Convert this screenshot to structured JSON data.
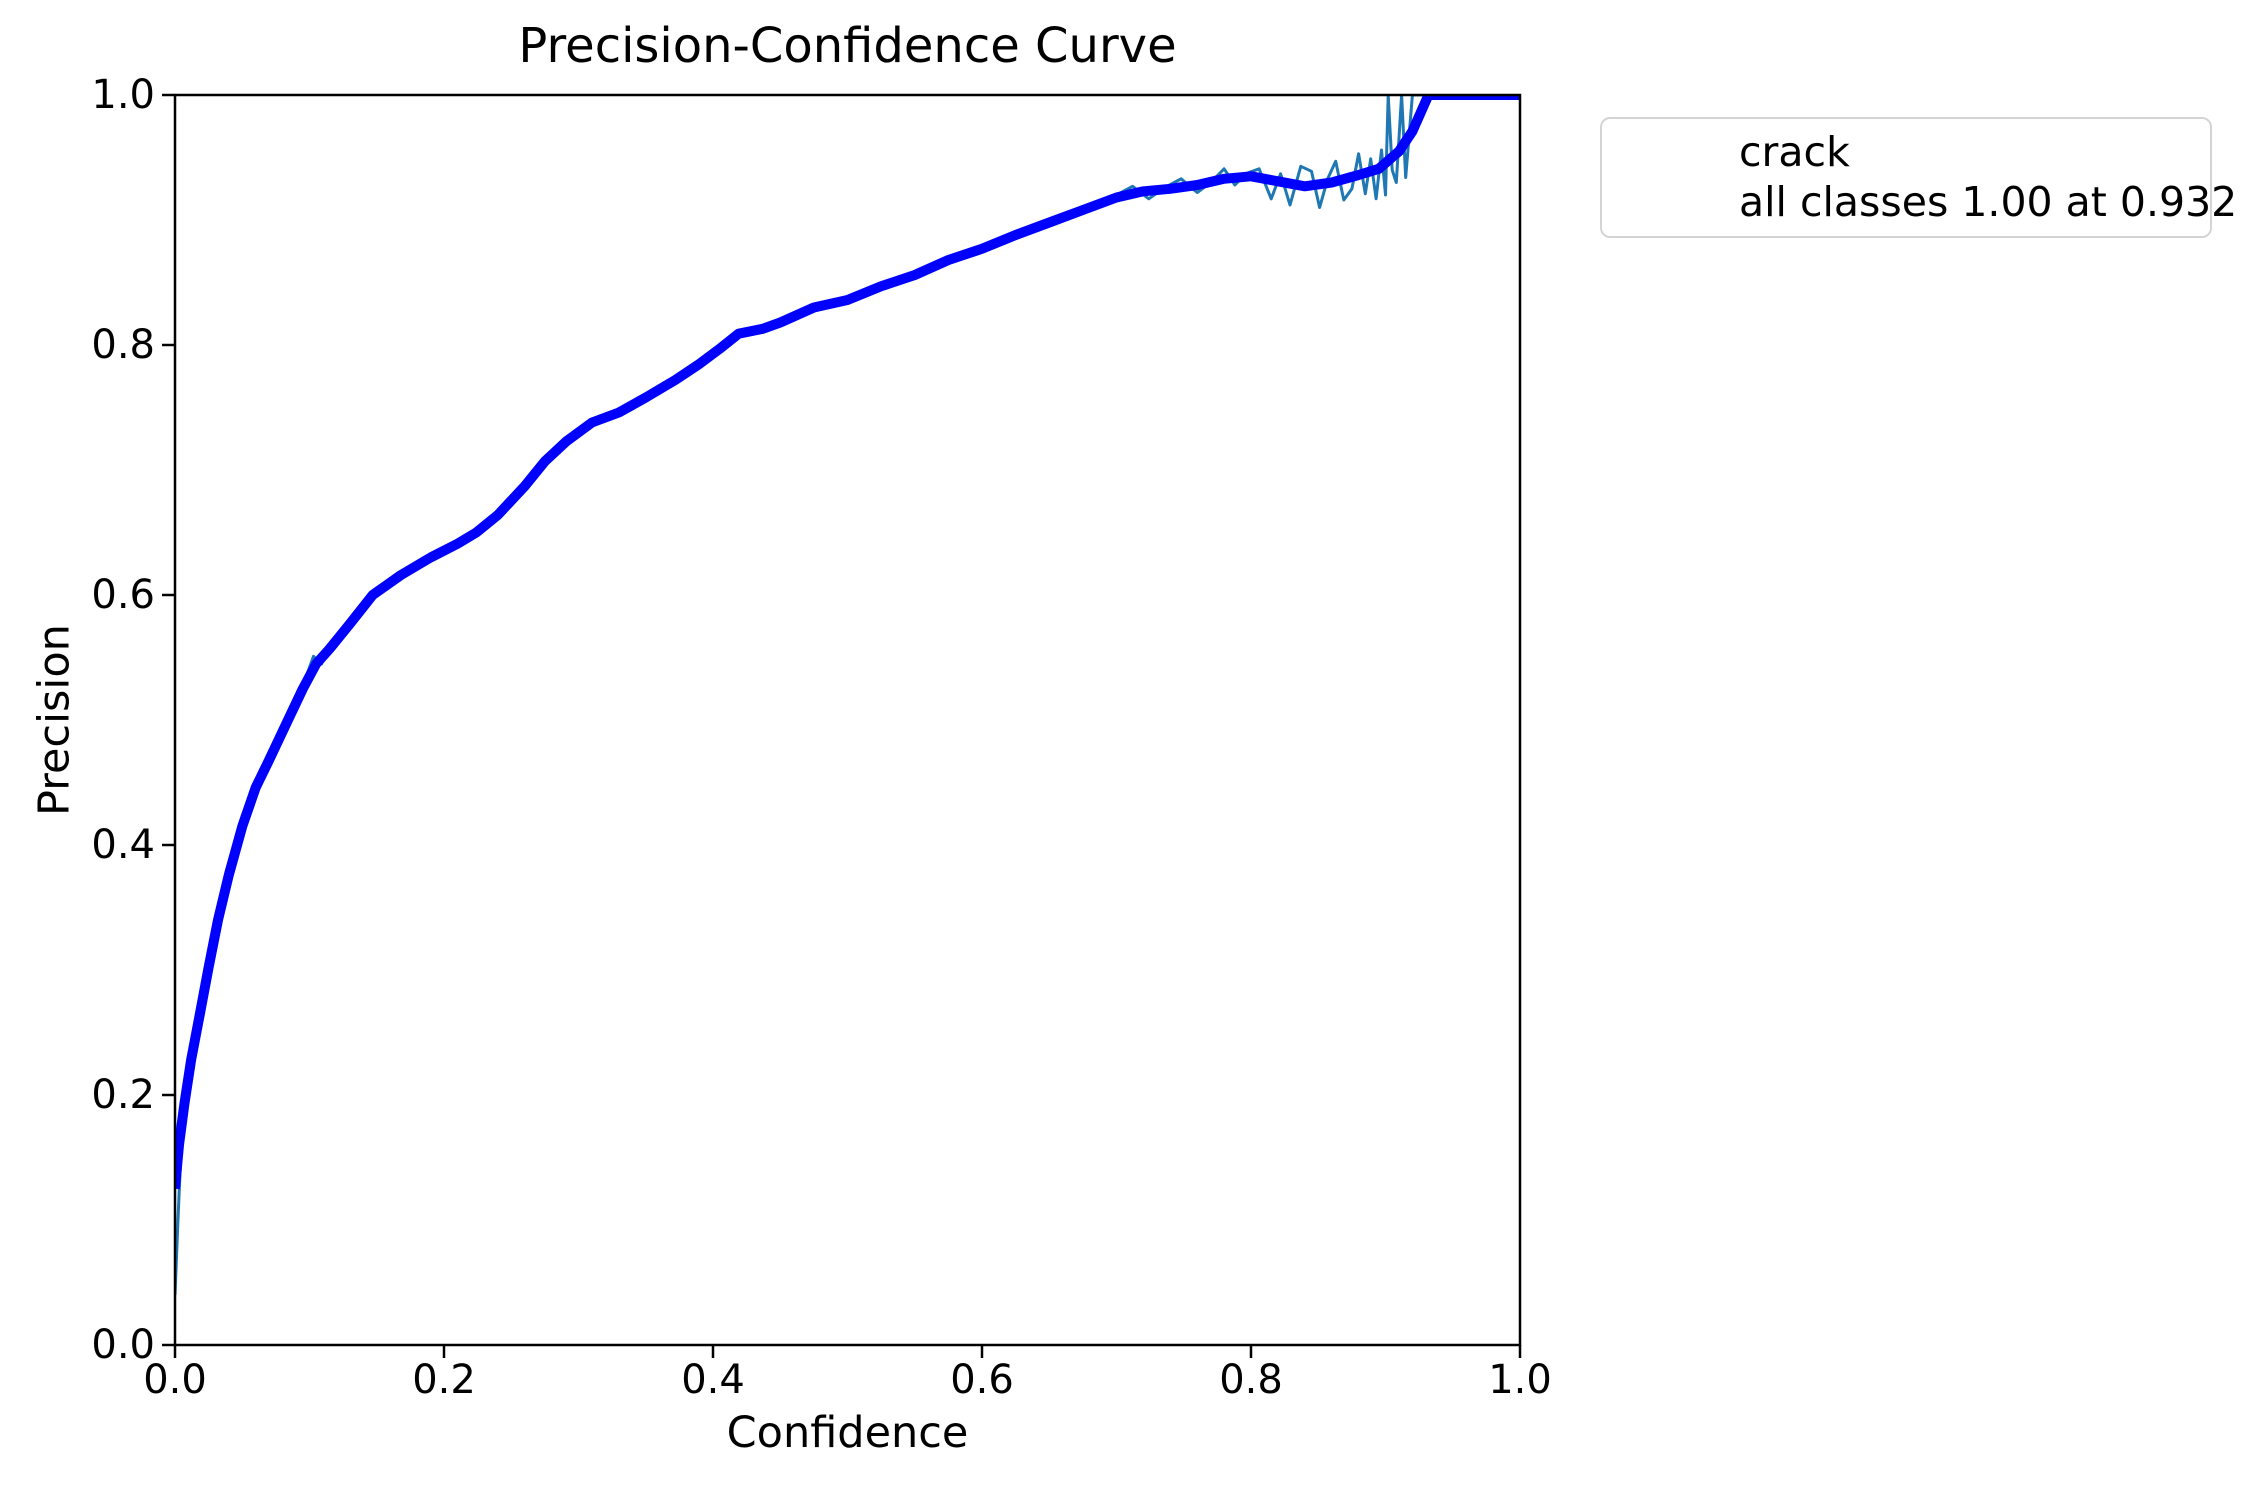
{
  "chart_data": {
    "type": "line",
    "title": "Precision-Confidence Curve",
    "xlabel": "Confidence",
    "ylabel": "Precision",
    "xlim": [
      0.0,
      1.0
    ],
    "ylim": [
      0.0,
      1.0
    ],
    "grid": false,
    "background_color": "#ffffff",
    "spine_color": "#000000",
    "legend_position": "outside-upper-right",
    "x_ticks": [
      0.0,
      0.2,
      0.4,
      0.6,
      0.8,
      1.0
    ],
    "x_tick_labels": [
      "0.0",
      "0.2",
      "0.4",
      "0.6",
      "0.8",
      "1.0"
    ],
    "y_ticks": [
      0.0,
      0.2,
      0.4,
      0.6,
      0.8,
      1.0
    ],
    "y_tick_labels": [
      "0.0",
      "0.2",
      "0.4",
      "0.6",
      "0.8",
      "1.0"
    ],
    "series": [
      {
        "name": "crack",
        "color": "#1f77b4",
        "line_width": 3,
        "points": [
          [
            0.0,
            0.04
          ],
          [
            0.002,
            0.095
          ],
          [
            0.004,
            0.145
          ],
          [
            0.007,
            0.195
          ],
          [
            0.012,
            0.23
          ],
          [
            0.018,
            0.264
          ],
          [
            0.025,
            0.304
          ],
          [
            0.032,
            0.342
          ],
          [
            0.04,
            0.378
          ],
          [
            0.05,
            0.417
          ],
          [
            0.06,
            0.448
          ],
          [
            0.07,
            0.47
          ],
          [
            0.084,
            0.502
          ],
          [
            0.095,
            0.527
          ],
          [
            0.103,
            0.551
          ],
          [
            0.109,
            0.545
          ],
          [
            0.115,
            0.559
          ],
          [
            0.13,
            0.579
          ],
          [
            0.147,
            0.602
          ],
          [
            0.168,
            0.618
          ],
          [
            0.19,
            0.632
          ],
          [
            0.21,
            0.643
          ],
          [
            0.224,
            0.652
          ],
          [
            0.24,
            0.666
          ],
          [
            0.26,
            0.689
          ],
          [
            0.275,
            0.709
          ],
          [
            0.291,
            0.725
          ],
          [
            0.31,
            0.74
          ],
          [
            0.33,
            0.748
          ],
          [
            0.35,
            0.76
          ],
          [
            0.372,
            0.774
          ],
          [
            0.39,
            0.787
          ],
          [
            0.405,
            0.799
          ],
          [
            0.419,
            0.811
          ],
          [
            0.437,
            0.815
          ],
          [
            0.45,
            0.82
          ],
          [
            0.475,
            0.832
          ],
          [
            0.5,
            0.838
          ],
          [
            0.525,
            0.849
          ],
          [
            0.55,
            0.858
          ],
          [
            0.575,
            0.87
          ],
          [
            0.6,
            0.879
          ],
          [
            0.625,
            0.89
          ],
          [
            0.65,
            0.9
          ],
          [
            0.675,
            0.91
          ],
          [
            0.7,
            0.92
          ],
          [
            0.712,
            0.927
          ],
          [
            0.724,
            0.917
          ],
          [
            0.736,
            0.926
          ],
          [
            0.748,
            0.933
          ],
          [
            0.76,
            0.922
          ],
          [
            0.77,
            0.93
          ],
          [
            0.78,
            0.941
          ],
          [
            0.788,
            0.928
          ],
          [
            0.796,
            0.937
          ],
          [
            0.806,
            0.941
          ],
          [
            0.815,
            0.917
          ],
          [
            0.822,
            0.937
          ],
          [
            0.829,
            0.912
          ],
          [
            0.837,
            0.943
          ],
          [
            0.845,
            0.939
          ],
          [
            0.851,
            0.91
          ],
          [
            0.857,
            0.933
          ],
          [
            0.863,
            0.947
          ],
          [
            0.869,
            0.916
          ],
          [
            0.875,
            0.925
          ],
          [
            0.88,
            0.953
          ],
          [
            0.885,
            0.921
          ],
          [
            0.889,
            0.949
          ],
          [
            0.893,
            0.917
          ],
          [
            0.897,
            0.956
          ],
          [
            0.9,
            0.92
          ],
          [
            0.902,
            1.0
          ],
          [
            0.905,
            0.94
          ],
          [
            0.908,
            0.93
          ],
          [
            0.912,
            1.0
          ],
          [
            0.915,
            0.934
          ],
          [
            0.92,
            1.0
          ],
          [
            0.932,
            1.0
          ],
          [
            1.0,
            1.0
          ]
        ]
      },
      {
        "name": "all classes 1.00 at 0.932",
        "color": "#0000ff",
        "line_width": 10,
        "points": [
          [
            0.0,
            0.125
          ],
          [
            0.003,
            0.16
          ],
          [
            0.007,
            0.193
          ],
          [
            0.012,
            0.228
          ],
          [
            0.018,
            0.262
          ],
          [
            0.025,
            0.302
          ],
          [
            0.032,
            0.34
          ],
          [
            0.04,
            0.376
          ],
          [
            0.05,
            0.415
          ],
          [
            0.06,
            0.446
          ],
          [
            0.07,
            0.468
          ],
          [
            0.084,
            0.5
          ],
          [
            0.095,
            0.525
          ],
          [
            0.105,
            0.545
          ],
          [
            0.115,
            0.557
          ],
          [
            0.13,
            0.577
          ],
          [
            0.147,
            0.6
          ],
          [
            0.168,
            0.616
          ],
          [
            0.19,
            0.63
          ],
          [
            0.21,
            0.641
          ],
          [
            0.224,
            0.65
          ],
          [
            0.24,
            0.664
          ],
          [
            0.26,
            0.687
          ],
          [
            0.275,
            0.707
          ],
          [
            0.291,
            0.723
          ],
          [
            0.31,
            0.738
          ],
          [
            0.33,
            0.746
          ],
          [
            0.35,
            0.758
          ],
          [
            0.372,
            0.772
          ],
          [
            0.39,
            0.785
          ],
          [
            0.405,
            0.797
          ],
          [
            0.419,
            0.809
          ],
          [
            0.437,
            0.813
          ],
          [
            0.45,
            0.818
          ],
          [
            0.475,
            0.83
          ],
          [
            0.5,
            0.836
          ],
          [
            0.525,
            0.847
          ],
          [
            0.55,
            0.856
          ],
          [
            0.575,
            0.868
          ],
          [
            0.6,
            0.877
          ],
          [
            0.625,
            0.888
          ],
          [
            0.65,
            0.898
          ],
          [
            0.675,
            0.908
          ],
          [
            0.7,
            0.918
          ],
          [
            0.72,
            0.923
          ],
          [
            0.74,
            0.925
          ],
          [
            0.76,
            0.928
          ],
          [
            0.78,
            0.933
          ],
          [
            0.8,
            0.935
          ],
          [
            0.82,
            0.931
          ],
          [
            0.84,
            0.927
          ],
          [
            0.86,
            0.93
          ],
          [
            0.88,
            0.936
          ],
          [
            0.895,
            0.941
          ],
          [
            0.91,
            0.955
          ],
          [
            0.92,
            0.971
          ],
          [
            0.932,
            1.0
          ],
          [
            1.0,
            1.0
          ]
        ]
      }
    ]
  }
}
